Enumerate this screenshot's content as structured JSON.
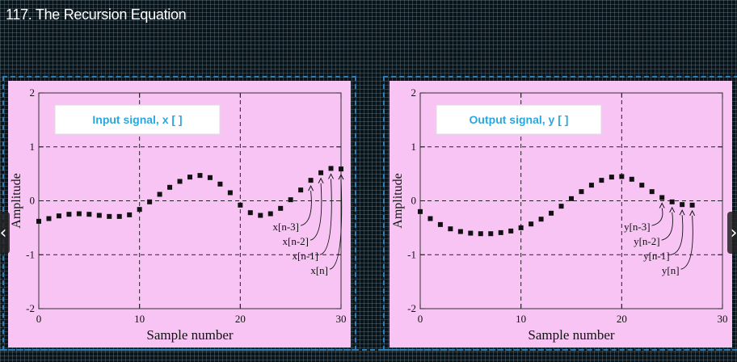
{
  "video": {
    "title": "117. The Recursion Equation"
  },
  "nav": {
    "prev_icon": "‹",
    "next_icon": "›"
  },
  "chart_data": [
    {
      "type": "scatter",
      "legend_box": "Input signal,  x [  ]",
      "xlabel": "Sample number",
      "ylabel": "Amplitude",
      "xlim": [
        0,
        30
      ],
      "ylim": [
        -2,
        2
      ],
      "xticks": [
        0,
        10,
        20,
        30
      ],
      "yticks": [
        -2,
        -1,
        0,
        1,
        2
      ],
      "grid": "dashed",
      "colors": {
        "panel": "#f7c4f4",
        "legend_text": "#29a8e0",
        "marker": "#111111"
      },
      "x": [
        0,
        1,
        2,
        3,
        4,
        5,
        6,
        7,
        8,
        9,
        10,
        11,
        12,
        13,
        14,
        15,
        16,
        17,
        18,
        19,
        20,
        21,
        22,
        23,
        24,
        25,
        26,
        27,
        28,
        29,
        30
      ],
      "y": [
        -0.38,
        -0.33,
        -0.28,
        -0.25,
        -0.24,
        -0.25,
        -0.27,
        -0.29,
        -0.29,
        -0.26,
        -0.16,
        -0.02,
        0.12,
        0.25,
        0.36,
        0.44,
        0.47,
        0.43,
        0.31,
        0.15,
        -0.08,
        -0.22,
        -0.27,
        -0.24,
        -0.14,
        0.02,
        0.2,
        0.38,
        0.52,
        0.6,
        0.59
      ],
      "annotations": [
        {
          "text": "x[n-3]",
          "target_x": 27
        },
        {
          "text": "x[n-2]",
          "target_x": 28
        },
        {
          "text": "x[n-1]",
          "target_x": 29
        },
        {
          "text": "x[n]",
          "target_x": 30
        }
      ]
    },
    {
      "type": "scatter",
      "legend_box": "Output signal,  y [  ]",
      "xlabel": "Sample number",
      "ylabel": "Amplitude",
      "xlim": [
        0,
        30
      ],
      "ylim": [
        -2,
        2
      ],
      "xticks": [
        0,
        10,
        20,
        30
      ],
      "yticks": [
        -2,
        -1,
        0,
        1,
        2
      ],
      "grid": "dashed",
      "colors": {
        "panel": "#f7c4f4",
        "legend_text": "#29a8e0",
        "marker": "#111111"
      },
      "x": [
        0,
        1,
        2,
        3,
        4,
        5,
        6,
        7,
        8,
        9,
        10,
        11,
        12,
        13,
        14,
        15,
        16,
        17,
        18,
        19,
        20,
        21,
        22,
        23,
        24,
        25,
        26,
        27
      ],
      "y": [
        -0.2,
        -0.33,
        -0.44,
        -0.52,
        -0.57,
        -0.6,
        -0.61,
        -0.61,
        -0.59,
        -0.56,
        -0.5,
        -0.43,
        -0.34,
        -0.23,
        -0.1,
        0.04,
        0.17,
        0.29,
        0.38,
        0.44,
        0.45,
        0.4,
        0.29,
        0.17,
        0.06,
        -0.02,
        -0.07,
        -0.08
      ],
      "annotations": [
        {
          "text": "y[n-3]",
          "target_x": 24
        },
        {
          "text": "y[n-2]",
          "target_x": 25
        },
        {
          "text": "y[n-1]",
          "target_x": 26
        },
        {
          "text": "y[n]",
          "target_x": 27
        }
      ]
    }
  ]
}
